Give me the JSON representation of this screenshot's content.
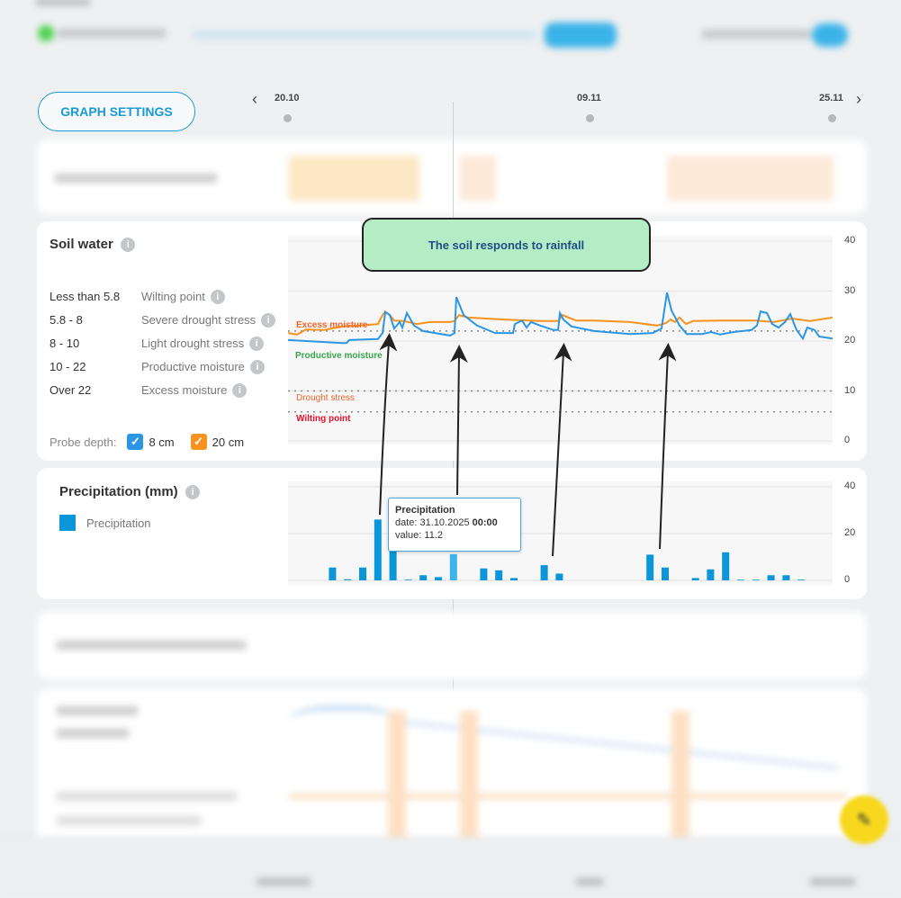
{
  "toolbar": {
    "graph_settings_label": "GRAPH SETTINGS"
  },
  "timeline": {
    "dates": [
      "20.10",
      "09.11",
      "25.11"
    ],
    "prev_icon": "chevron-left",
    "next_icon": "chevron-right"
  },
  "soil_water": {
    "title": "Soil water",
    "legend": [
      {
        "range": "Less than 5.8",
        "name": "Wilting point"
      },
      {
        "range": "5.8 - 8",
        "name": "Severe drought stress"
      },
      {
        "range": "8 - 10",
        "name": "Light drought stress"
      },
      {
        "range": "10 - 22",
        "name": "Productive moisture"
      },
      {
        "range": "Over 22",
        "name": "Excess moisture"
      }
    ],
    "probe_depth_label": "Probe depth:",
    "probes": [
      {
        "label": "8 cm",
        "checked": true,
        "color": "#2b96e3"
      },
      {
        "label": "20 cm",
        "checked": true,
        "color": "#f7931e"
      }
    ],
    "zones": {
      "excess": "Excess moisture",
      "productive": "Productive moisture",
      "drought": "Drought stress",
      "wilting": "Wilting point"
    }
  },
  "precipitation": {
    "title": "Precipitation (mm)",
    "legend_label": "Precipitation",
    "tooltip": {
      "title": "Precipitation",
      "date_prefix": "date: 31.10.2025",
      "time": "00:00",
      "value_text": "value: 11.2"
    }
  },
  "annotation": {
    "callout": "The soil responds to rainfall"
  },
  "chart_data": [
    {
      "type": "line",
      "title": "Soil water",
      "x_unit": "days since 20.10",
      "x_ticks": [
        "20.10",
        "09.11",
        "25.11"
      ],
      "ylim": [
        0,
        40
      ],
      "yticks": [
        0,
        10,
        20,
        30,
        40
      ],
      "thresholds": [
        {
          "label": "Excess moisture",
          "value": 22
        },
        {
          "label": "Drought stress",
          "value": 10
        },
        {
          "label": "Wilting point",
          "value": 5.8
        }
      ],
      "series": [
        {
          "name": "8 cm",
          "color": "#2b96e3",
          "points": [
            [
              0.06,
              20.2
            ],
            [
              3.63,
              19.6
            ],
            [
              3.93,
              19.6
            ],
            [
              4.11,
              20.2
            ],
            [
              6.01,
              20.4
            ],
            [
              6.31,
              21.6
            ],
            [
              6.49,
              25.8
            ],
            [
              6.79,
              25.2
            ],
            [
              7.08,
              22.5
            ],
            [
              7.44,
              23.8
            ],
            [
              7.62,
              22.7
            ],
            [
              7.92,
              25.6
            ],
            [
              8.39,
              23.1
            ],
            [
              8.99,
              22.0
            ],
            [
              10.77,
              21.1
            ],
            [
              11.07,
              21.6
            ],
            [
              11.19,
              28.8
            ],
            [
              11.67,
              25.2
            ],
            [
              12.56,
              23.1
            ],
            [
              13.75,
              21.6
            ],
            [
              14.94,
              21.6
            ],
            [
              15.06,
              23.4
            ],
            [
              15.54,
              24.1
            ],
            [
              15.83,
              22.7
            ],
            [
              16.13,
              23.8
            ],
            [
              16.73,
              23.1
            ],
            [
              17.62,
              22.2
            ],
            [
              17.92,
              22.2
            ],
            [
              18.04,
              25.6
            ],
            [
              18.27,
              24.3
            ],
            [
              18.81,
              22.9
            ],
            [
              20.3,
              22.0
            ],
            [
              22.68,
              21.4
            ],
            [
              24.17,
              21.6
            ],
            [
              24.76,
              22.5
            ],
            [
              25.12,
              29.7
            ],
            [
              25.42,
              26.1
            ],
            [
              25.95,
              23.1
            ],
            [
              26.43,
              21.4
            ],
            [
              27.44,
              21.4
            ],
            [
              28.04,
              21.8
            ],
            [
              28.63,
              21.3
            ],
            [
              29.52,
              21.8
            ],
            [
              30.71,
              22.2
            ],
            [
              31.07,
              23.1
            ],
            [
              31.31,
              25.9
            ],
            [
              31.73,
              25.6
            ],
            [
              32.08,
              23.4
            ],
            [
              32.5,
              22.7
            ],
            [
              32.92,
              23.8
            ],
            [
              33.27,
              25.4
            ],
            [
              33.69,
              22.2
            ],
            [
              34.11,
              20.5
            ],
            [
              34.4,
              22.7
            ],
            [
              34.88,
              22.2
            ],
            [
              35.18,
              20.9
            ],
            [
              36.07,
              20.5
            ]
          ]
        },
        {
          "name": "20 cm",
          "color": "#f7931e",
          "points": [
            [
              0.06,
              21.6
            ],
            [
              0.65,
              21.3
            ],
            [
              1.25,
              22.3
            ],
            [
              2.44,
              22.2
            ],
            [
              3.63,
              22.9
            ],
            [
              4.82,
              23.1
            ],
            [
              6.01,
              23.4
            ],
            [
              6.31,
              25.2
            ],
            [
              6.49,
              25.9
            ],
            [
              6.79,
              25.2
            ],
            [
              7.08,
              24.1
            ],
            [
              7.68,
              24.0
            ],
            [
              8.6,
              23.4
            ],
            [
              9.46,
              23.8
            ],
            [
              10.77,
              23.8
            ],
            [
              11.07,
              24.0
            ],
            [
              11.37,
              25.2
            ],
            [
              11.96,
              24.7
            ],
            [
              14.35,
              24.3
            ],
            [
              16.73,
              24.0
            ],
            [
              17.92,
              24.0
            ],
            [
              18.21,
              25.2
            ],
            [
              19.11,
              24.1
            ],
            [
              20.3,
              24.1
            ],
            [
              22.68,
              23.8
            ],
            [
              24.46,
              23.1
            ],
            [
              25.06,
              23.6
            ],
            [
              25.36,
              24.3
            ],
            [
              25.65,
              23.8
            ],
            [
              25.95,
              24.7
            ],
            [
              26.37,
              23.4
            ],
            [
              26.85,
              24.0
            ],
            [
              28.63,
              24.1
            ],
            [
              31.01,
              24.1
            ],
            [
              32.2,
              23.8
            ],
            [
              33.39,
              24.5
            ],
            [
              34.58,
              24.0
            ],
            [
              36.07,
              24.7
            ]
          ]
        }
      ]
    },
    {
      "type": "bar",
      "title": "Precipitation (mm)",
      "x_unit": "days since 20.10",
      "ylim": [
        0,
        40
      ],
      "yticks": [
        0,
        20,
        40
      ],
      "series": [
        {
          "name": "Precipitation",
          "color": "#0a96d8",
          "points": [
            [
              3,
              5.5
            ],
            [
              4,
              0.5
            ],
            [
              5,
              5.5
            ],
            [
              6,
              26
            ],
            [
              7,
              15
            ],
            [
              8,
              0.3
            ],
            [
              9,
              2.2
            ],
            [
              10,
              1.4
            ],
            [
              11,
              11.2
            ],
            [
              13,
              5.1
            ],
            [
              14,
              4.3
            ],
            [
              15,
              1.0
            ],
            [
              17,
              6.5
            ],
            [
              18,
              2.9
            ],
            [
              24,
              11
            ],
            [
              25,
              5.5
            ],
            [
              27,
              1.0
            ],
            [
              28,
              4.7
            ],
            [
              29,
              12
            ],
            [
              30,
              0.3
            ],
            [
              31,
              0.3
            ],
            [
              32,
              2.2
            ],
            [
              33,
              2.2
            ],
            [
              34,
              0.3
            ]
          ]
        }
      ]
    }
  ]
}
